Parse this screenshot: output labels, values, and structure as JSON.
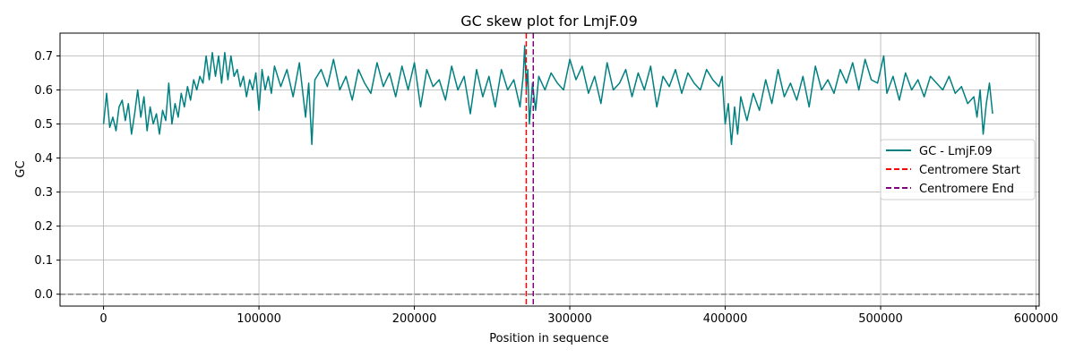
{
  "chart_data": {
    "type": "line",
    "title": "GC skew plot for LmjF.09",
    "xlabel": "Position in sequence",
    "ylabel": "GC",
    "xlim": [
      -28000,
      602000
    ],
    "ylim": [
      -0.035,
      0.767
    ],
    "xticks": [
      0,
      100000,
      200000,
      300000,
      400000,
      500000,
      600000
    ],
    "xtick_labels": [
      "0",
      "100000",
      "200000",
      "300000",
      "400000",
      "500000",
      "600000"
    ],
    "yticks": [
      0.0,
      0.1,
      0.2,
      0.3,
      0.4,
      0.5,
      0.6,
      0.7
    ],
    "ytick_labels": [
      "0.0",
      "0.1",
      "0.2",
      "0.3",
      "0.4",
      "0.5",
      "0.6",
      "0.7"
    ],
    "grid": true,
    "legend_position": "center-right",
    "series": [
      {
        "name": "GC - LmjF.09",
        "color": "#008080",
        "style": "solid",
        "x": [
          0,
          2000,
          4000,
          6000,
          8000,
          10000,
          12000,
          14000,
          16000,
          18000,
          20000,
          22000,
          24000,
          26000,
          28000,
          30000,
          32000,
          34000,
          36000,
          38000,
          40000,
          42000,
          44000,
          46000,
          48000,
          50000,
          52000,
          54000,
          56000,
          58000,
          60000,
          62000,
          64000,
          66000,
          68000,
          70000,
          72000,
          74000,
          76000,
          78000,
          80000,
          82000,
          84000,
          86000,
          88000,
          90000,
          92000,
          94000,
          96000,
          98000,
          100000,
          102000,
          104000,
          106000,
          108000,
          110000,
          114000,
          118000,
          122000,
          126000,
          130000,
          132000,
          134000,
          136000,
          140000,
          144000,
          148000,
          152000,
          156000,
          160000,
          164000,
          168000,
          172000,
          176000,
          180000,
          184000,
          188000,
          192000,
          196000,
          200000,
          204000,
          208000,
          212000,
          216000,
          220000,
          224000,
          228000,
          232000,
          236000,
          240000,
          244000,
          248000,
          252000,
          256000,
          260000,
          264000,
          268000,
          270000,
          271000,
          272000,
          273000,
          274000,
          275000,
          276000,
          278000,
          280000,
          284000,
          288000,
          292000,
          296000,
          300000,
          304000,
          308000,
          312000,
          316000,
          320000,
          324000,
          328000,
          332000,
          336000,
          340000,
          344000,
          348000,
          352000,
          356000,
          360000,
          364000,
          368000,
          372000,
          376000,
          380000,
          384000,
          388000,
          392000,
          396000,
          398000,
          400000,
          402000,
          404000,
          406000,
          408000,
          410000,
          414000,
          418000,
          422000,
          426000,
          430000,
          434000,
          438000,
          442000,
          446000,
          450000,
          454000,
          458000,
          462000,
          466000,
          470000,
          474000,
          478000,
          482000,
          486000,
          490000,
          494000,
          498000,
          502000,
          504000,
          508000,
          512000,
          516000,
          520000,
          524000,
          528000,
          532000,
          536000,
          540000,
          544000,
          548000,
          552000,
          556000,
          560000,
          562000,
          564000,
          566000,
          568000,
          570000,
          572000
        ],
        "y": [
          0.5,
          0.59,
          0.49,
          0.52,
          0.48,
          0.55,
          0.57,
          0.51,
          0.56,
          0.47,
          0.53,
          0.6,
          0.52,
          0.58,
          0.48,
          0.55,
          0.5,
          0.53,
          0.47,
          0.54,
          0.51,
          0.62,
          0.5,
          0.56,
          0.52,
          0.59,
          0.55,
          0.61,
          0.57,
          0.63,
          0.6,
          0.64,
          0.62,
          0.7,
          0.63,
          0.71,
          0.64,
          0.7,
          0.62,
          0.71,
          0.63,
          0.7,
          0.64,
          0.66,
          0.61,
          0.64,
          0.58,
          0.63,
          0.6,
          0.65,
          0.54,
          0.66,
          0.6,
          0.64,
          0.59,
          0.67,
          0.61,
          0.66,
          0.58,
          0.68,
          0.52,
          0.62,
          0.44,
          0.63,
          0.66,
          0.61,
          0.69,
          0.6,
          0.64,
          0.57,
          0.66,
          0.62,
          0.59,
          0.68,
          0.61,
          0.65,
          0.58,
          0.67,
          0.6,
          0.68,
          0.55,
          0.66,
          0.61,
          0.63,
          0.57,
          0.67,
          0.6,
          0.64,
          0.53,
          0.66,
          0.58,
          0.64,
          0.55,
          0.66,
          0.6,
          0.63,
          0.55,
          0.64,
          0.73,
          0.6,
          0.66,
          0.5,
          0.56,
          0.62,
          0.54,
          0.64,
          0.6,
          0.65,
          0.62,
          0.6,
          0.69,
          0.63,
          0.67,
          0.59,
          0.64,
          0.56,
          0.68,
          0.6,
          0.62,
          0.66,
          0.58,
          0.65,
          0.6,
          0.67,
          0.55,
          0.64,
          0.61,
          0.66,
          0.59,
          0.65,
          0.62,
          0.6,
          0.66,
          0.63,
          0.61,
          0.64,
          0.5,
          0.56,
          0.44,
          0.55,
          0.47,
          0.58,
          0.51,
          0.59,
          0.54,
          0.63,
          0.56,
          0.66,
          0.58,
          0.62,
          0.57,
          0.64,
          0.55,
          0.67,
          0.6,
          0.63,
          0.59,
          0.66,
          0.62,
          0.68,
          0.6,
          0.69,
          0.63,
          0.62,
          0.7,
          0.59,
          0.64,
          0.57,
          0.65,
          0.6,
          0.63,
          0.58,
          0.64,
          0.62,
          0.6,
          0.64,
          0.59,
          0.61,
          0.56,
          0.58,
          0.52,
          0.6,
          0.47,
          0.56,
          0.62,
          0.53
        ]
      },
      {
        "name": "Centromere Start",
        "color": "#ff0000",
        "style": "dashed",
        "orientation": "vertical",
        "x_value": 272000
      },
      {
        "name": "Centromere End",
        "color": "#800080",
        "style": "dashed",
        "orientation": "vertical",
        "x_value": 276500
      }
    ],
    "reference_line": {
      "orientation": "horizontal",
      "y_value": 0.0,
      "color": "#808080",
      "style": "dashed"
    }
  }
}
